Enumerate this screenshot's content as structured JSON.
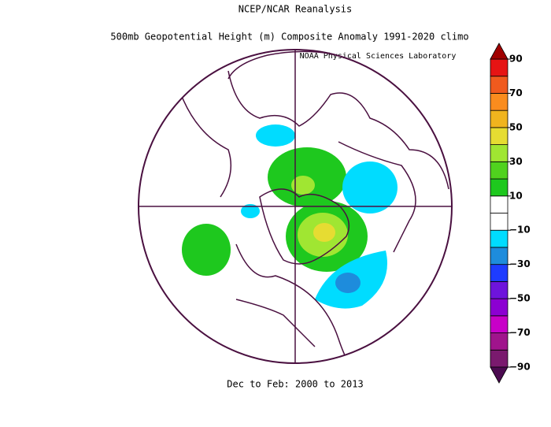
{
  "header": {
    "title": "NCEP/NCAR Reanalysis",
    "subtitle": "500mb Geopotential Height (m) Composite Anomaly 1991-2020 climo",
    "credit": "NOAA Physical Sciences Laboratory"
  },
  "footer": "Dec to Feb: 2000 to 2013",
  "colorbar": {
    "ylim": [
      -90,
      90
    ],
    "yticks": [
      {
        "value": -90,
        "label": "−90"
      },
      {
        "value": -70,
        "label": "−70"
      },
      {
        "value": -50,
        "label": "−50"
      },
      {
        "value": -30,
        "label": "−30"
      },
      {
        "value": -10,
        "label": "−10"
      },
      10,
      30,
      50,
      70,
      90
    ],
    "colors": [
      "#7a1a6e",
      "#a0148c",
      "#c800c8",
      "#8c00d2",
      "#6e14dc",
      "#1e3cff",
      "#1e8cdc",
      "#00dcff",
      "#ffffff",
      "#ffffff",
      "#1ec81e",
      "#50d21e",
      "#a0e632",
      "#e6dc32",
      "#f0b41e",
      "#fa8c1e",
      "#f05a1e",
      "#e61414"
    ],
    "extend_low": "#4b0a50",
    "extend_high": "#a00000"
  }
}
